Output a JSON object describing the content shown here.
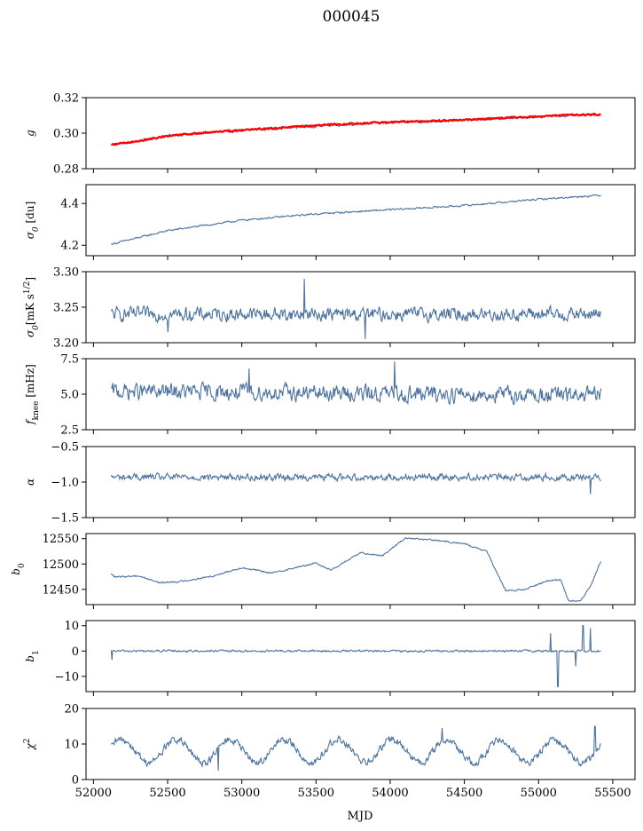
{
  "title": "000045",
  "xlabel": "MJD",
  "xticks": [
    52000,
    52500,
    53000,
    53500,
    54000,
    54500,
    55000,
    55500
  ],
  "colors": {
    "series": "#4c72a0",
    "fit": "#ff0000"
  },
  "chart_data": [
    {
      "type": "line",
      "ylabel": "g",
      "xlim": [
        51950,
        55650
      ],
      "ylim": [
        0.28,
        0.32
      ],
      "yticks": [
        0.28,
        0.3,
        0.32
      ],
      "ytick_labels": [
        "0.28",
        "0.30",
        "0.32"
      ],
      "x_range": [
        52120,
        55420
      ],
      "series": [
        {
          "kind": "data",
          "x": [
            52120,
            52300,
            52500,
            52800,
            53200,
            53600,
            54000,
            54400,
            54800,
            55200,
            55420
          ],
          "y": [
            0.2935,
            0.2955,
            0.2985,
            0.3005,
            0.3025,
            0.3045,
            0.306,
            0.307,
            0.3085,
            0.31,
            0.3105
          ],
          "noise": 0.0007
        },
        {
          "kind": "fit",
          "x": [
            52120,
            52300,
            52500,
            52800,
            53200,
            53600,
            54000,
            54400,
            54800,
            55200,
            55420
          ],
          "y": [
            0.2935,
            0.2955,
            0.2985,
            0.3005,
            0.3028,
            0.3048,
            0.3062,
            0.3072,
            0.3087,
            0.3102,
            0.3105
          ],
          "noise": 0.0004
        }
      ]
    },
    {
      "type": "line",
      "ylabel": "σ0 [du]",
      "xlim": [
        51950,
        55650
      ],
      "ylim": [
        4.15,
        4.49
      ],
      "yticks": [
        4.2,
        4.4
      ],
      "ytick_labels": [
        "4.2",
        "4.4"
      ],
      "x_range": [
        52120,
        55420
      ],
      "series": [
        {
          "kind": "data",
          "x": [
            52120,
            52500,
            53000,
            53500,
            54000,
            54500,
            55000,
            55420
          ],
          "y": [
            4.205,
            4.27,
            4.32,
            4.35,
            4.37,
            4.39,
            4.42,
            4.44
          ],
          "noise": 0.004
        }
      ]
    },
    {
      "type": "line",
      "ylabel": "σ0[mK s^1/2]",
      "xlim": [
        51950,
        55650
      ],
      "ylim": [
        3.2,
        3.3
      ],
      "yticks": [
        3.2,
        3.25,
        3.3
      ],
      "ytick_labels": [
        "3.20",
        "3.25",
        "3.30"
      ],
      "x_range": [
        52120,
        55420
      ],
      "series": [
        {
          "kind": "data",
          "x": [
            52120,
            55420
          ],
          "y": [
            3.24,
            3.24
          ],
          "noise": 0.009,
          "spikes": [
            [
              53420,
              3.29
            ],
            [
              53830,
              3.205
            ],
            [
              52500,
              3.215
            ]
          ]
        }
      ]
    },
    {
      "type": "line",
      "ylabel": "fknee [mHz]",
      "xlim": [
        51950,
        55650
      ],
      "ylim": [
        2.5,
        7.5
      ],
      "yticks": [
        2.5,
        5.0,
        7.5
      ],
      "ytick_labels": [
        "2.5",
        "5.0",
        "7.5"
      ],
      "x_range": [
        52120,
        55420
      ],
      "series": [
        {
          "kind": "data",
          "x": [
            52120,
            55420
          ],
          "y": [
            5.2,
            4.9
          ],
          "noise": 0.55,
          "spikes": [
            [
              54030,
              7.3
            ],
            [
              53050,
              6.8
            ]
          ]
        }
      ]
    },
    {
      "type": "line",
      "ylabel": "α",
      "xlim": [
        51950,
        55650
      ],
      "ylim": [
        -1.5,
        -0.5
      ],
      "yticks": [
        -1.5,
        -1.0,
        -0.5
      ],
      "ytick_labels": [
        "−1.5",
        "−1.0",
        "−0.5"
      ],
      "x_range": [
        52120,
        55420
      ],
      "series": [
        {
          "kind": "data",
          "x": [
            52120,
            55420
          ],
          "y": [
            -0.93,
            -0.93
          ],
          "noise": 0.045,
          "spikes": [
            [
              55350,
              -1.17
            ]
          ]
        }
      ]
    },
    {
      "type": "line",
      "ylabel": "b0",
      "xlim": [
        51950,
        55650
      ],
      "ylim": [
        12420,
        12560
      ],
      "yticks": [
        12450,
        12500,
        12550
      ],
      "ytick_labels": [
        "12450",
        "12500",
        "12550"
      ],
      "x_range": [
        52120,
        55420
      ],
      "series": [
        {
          "kind": "data",
          "x": [
            52120,
            52150,
            52300,
            52450,
            52600,
            52800,
            53000,
            53200,
            53500,
            53600,
            53800,
            53950,
            54100,
            54300,
            54500,
            54650,
            54780,
            54900,
            55050,
            55150,
            55200,
            55280,
            55350,
            55420
          ],
          "y": [
            12480,
            12474,
            12477,
            12463,
            12466,
            12476,
            12493,
            12482,
            12502,
            12488,
            12522,
            12517,
            12551,
            12547,
            12540,
            12525,
            12447,
            12449,
            12466,
            12470,
            12428,
            12427,
            12455,
            12506
          ],
          "noise": 1.5
        }
      ]
    },
    {
      "type": "line",
      "ylabel": "b1",
      "xlim": [
        51950,
        55650
      ],
      "ylim": [
        -16,
        12
      ],
      "yticks": [
        -10,
        0,
        10
      ],
      "ytick_labels": [
        "−10",
        "0",
        "10"
      ],
      "x_range": [
        52120,
        55420
      ],
      "series": [
        {
          "kind": "data",
          "x": [
            52120,
            55000,
            55420
          ],
          "y": [
            0,
            0,
            0
          ],
          "noise": 0.4,
          "spikes": [
            [
              52125,
              -3.5
            ],
            [
              55130,
              -14
            ],
            [
              55080,
              7
            ],
            [
              55300,
              10
            ],
            [
              55350,
              9
            ],
            [
              55250,
              -6
            ]
          ]
        }
      ]
    },
    {
      "type": "line",
      "ylabel": "χ2",
      "xlim": [
        51950,
        55650
      ],
      "ylim": [
        0,
        20
      ],
      "yticks": [
        0,
        10,
        20
      ],
      "ytick_labels": [
        "0",
        "10",
        "20"
      ],
      "x_range": [
        52120,
        55420
      ],
      "series": [
        {
          "kind": "data",
          "x": [
            52120,
            55420
          ],
          "y": [
            8,
            8
          ],
          "noise": 1.0,
          "periodic": {
            "period": 365,
            "amp": 3.2
          },
          "spikes": [
            [
              54350,
              14.5
            ],
            [
              55380,
              15
            ],
            [
              52840,
              2.5
            ]
          ]
        }
      ]
    }
  ]
}
